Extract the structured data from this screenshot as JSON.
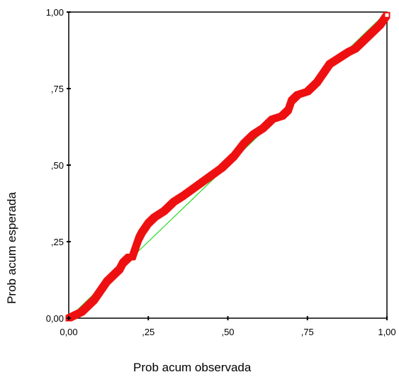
{
  "chart_data": {
    "type": "scatter",
    "xlabel": "Prob acum observada",
    "ylabel": "Prob acum esperada",
    "xlim": [
      0,
      1
    ],
    "ylim": [
      0,
      1
    ],
    "grid": false,
    "xticks": [
      "0,00",
      ",25",
      ",50",
      ",75",
      "1,00"
    ],
    "yticks": [
      "0,00",
      ",25",
      ",50",
      ",75",
      "1,00"
    ],
    "reference_line": {
      "from": [
        0,
        0
      ],
      "to": [
        1,
        1
      ],
      "color": "#33dd33"
    },
    "marker_color": "#ee1111",
    "series": [
      {
        "x": [
          0.0,
          0.02,
          0.04,
          0.06,
          0.08,
          0.1,
          0.12,
          0.14,
          0.16,
          0.17,
          0.18,
          0.19,
          0.2,
          0.21,
          0.22,
          0.23,
          0.25,
          0.27,
          0.3,
          0.33,
          0.36,
          0.4,
          0.44,
          0.48,
          0.5,
          0.52,
          0.55,
          0.58,
          0.61,
          0.64,
          0.67,
          0.69,
          0.7,
          0.72,
          0.75,
          0.78,
          0.8,
          0.82,
          0.85,
          0.88,
          0.9,
          0.92,
          0.94,
          0.96,
          0.98,
          1.0
        ],
        "y": [
          0.0,
          0.01,
          0.02,
          0.04,
          0.06,
          0.09,
          0.12,
          0.14,
          0.16,
          0.18,
          0.19,
          0.2,
          0.2,
          0.23,
          0.26,
          0.28,
          0.31,
          0.33,
          0.35,
          0.38,
          0.4,
          0.43,
          0.46,
          0.49,
          0.51,
          0.53,
          0.57,
          0.6,
          0.62,
          0.65,
          0.66,
          0.68,
          0.71,
          0.73,
          0.74,
          0.77,
          0.8,
          0.83,
          0.85,
          0.87,
          0.88,
          0.9,
          0.92,
          0.94,
          0.96,
          0.99
        ]
      }
    ]
  }
}
